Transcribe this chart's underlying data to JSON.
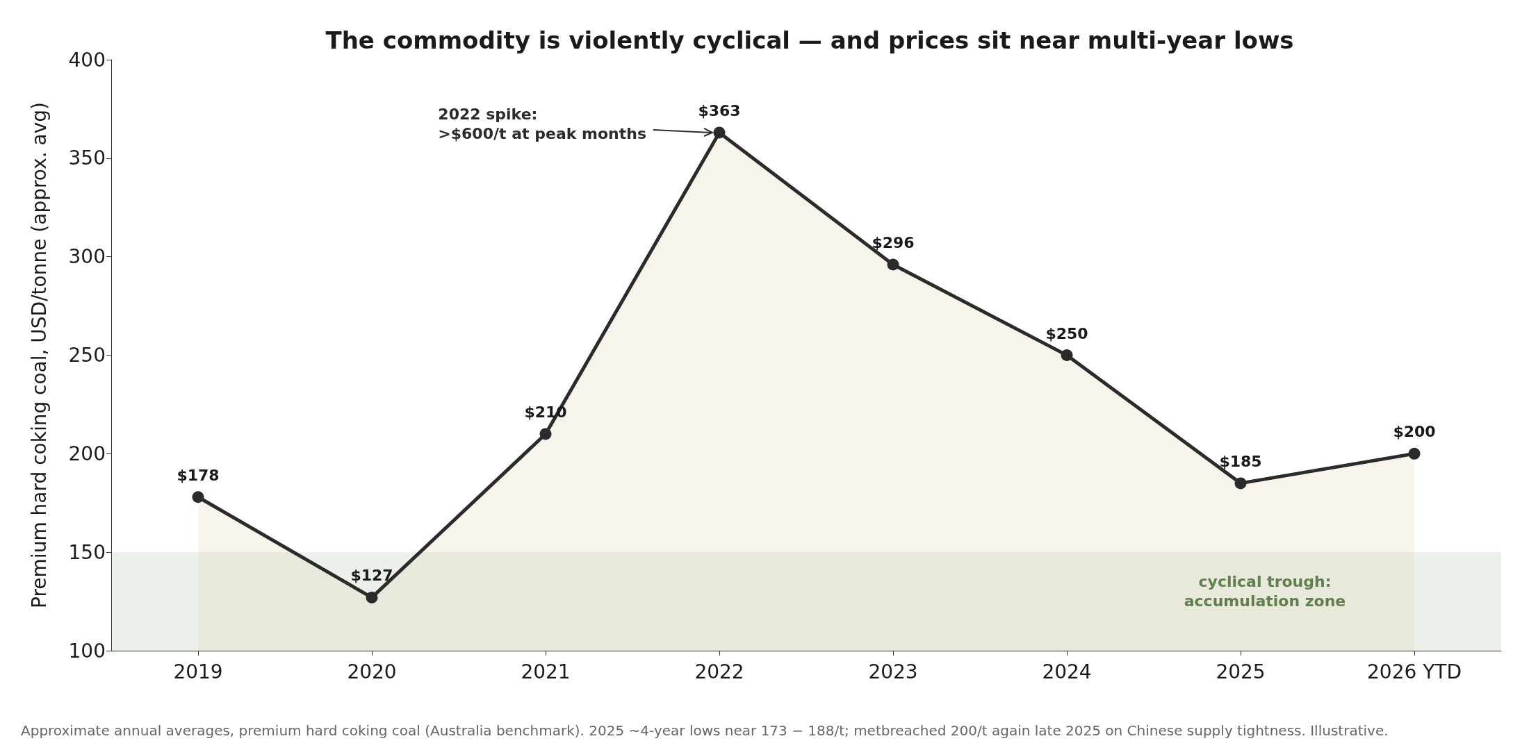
{
  "chart_data": {
    "type": "area",
    "title": "The commodity is violently cyclical — and prices sit near multi-year lows",
    "ylabel": "Premium hard coking coal, USD/tonne (approx. avg)",
    "categories": [
      "2019",
      "2020",
      "2021",
      "2022",
      "2023",
      "2024",
      "2025",
      "2026 YTD"
    ],
    "series": [
      {
        "color": "#2b2b2b",
        "values": [
          178,
          127,
          210,
          363,
          296,
          250,
          185,
          200
        ],
        "value_labels": [
          "$178",
          "$127",
          "$210",
          "$363",
          "$296",
          "$250",
          "$185",
          "$200"
        ]
      }
    ],
    "ylim": [
      100,
      400
    ],
    "yticks": [
      100,
      150,
      200,
      250,
      300,
      350,
      400
    ],
    "grid": false,
    "marker": "circle",
    "line_style": "solid",
    "bands": [
      {
        "axis": "y",
        "from": 100,
        "to": 150,
        "label": "cyclical trough:\naccumulation zone",
        "color": "#3d6b35"
      }
    ],
    "annotations": [
      "2022 spike:\n>$600/t at peak months",
      "Approximate annual averages, premium hard coking coal (Australia benchmark). 2025 ~4-year lows near 173 − 188/t; metbreached 200/t again late 2025 on Chinese supply tightness. Illustrative."
    ]
  }
}
